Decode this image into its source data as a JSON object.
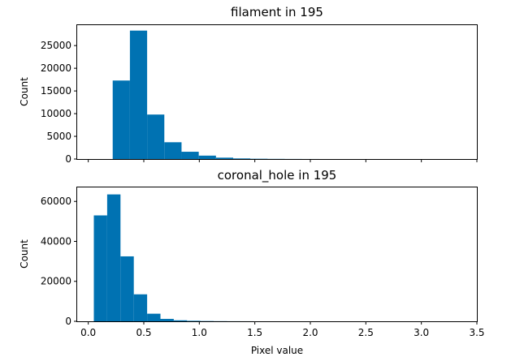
{
  "chart_data": [
    {
      "type": "bar",
      "title": "filament in 195",
      "xlabel": "",
      "ylabel": "Count",
      "bar_color": "#0072b2",
      "xlim": [
        -0.1,
        3.5
      ],
      "ylim": [
        0,
        29500
      ],
      "xticks": [
        0.0,
        0.5,
        1.0,
        1.5,
        2.0,
        2.5,
        3.0,
        3.5
      ],
      "xtick_labels_visible": false,
      "yticks": [
        0,
        5000,
        10000,
        15000,
        20000,
        25000
      ],
      "ytick_labels": [
        "0",
        "5000",
        "10000",
        "15000",
        "20000",
        "25000"
      ],
      "bins": [
        {
          "x0": 0.22,
          "x1": 0.375,
          "count": 17300
        },
        {
          "x0": 0.375,
          "x1": 0.53,
          "count": 28300
        },
        {
          "x0": 0.53,
          "x1": 0.685,
          "count": 9800
        },
        {
          "x0": 0.685,
          "x1": 0.84,
          "count": 3700
        },
        {
          "x0": 0.84,
          "x1": 0.995,
          "count": 1600
        },
        {
          "x0": 0.995,
          "x1": 1.15,
          "count": 750
        },
        {
          "x0": 1.15,
          "x1": 1.305,
          "count": 300
        },
        {
          "x0": 1.305,
          "x1": 1.46,
          "count": 130
        },
        {
          "x0": 1.46,
          "x1": 1.615,
          "count": 60
        },
        {
          "x0": 1.615,
          "x1": 1.77,
          "count": 30
        },
        {
          "x0": 1.77,
          "x1": 1.925,
          "count": 15
        },
        {
          "x0": 1.925,
          "x1": 2.08,
          "count": 8
        }
      ]
    },
    {
      "type": "bar",
      "title": "coronal_hole in 195",
      "xlabel": "Pixel value",
      "ylabel": "Count",
      "bar_color": "#0072b2",
      "xlim": [
        -0.1,
        3.5
      ],
      "ylim": [
        0,
        67000
      ],
      "xticks": [
        0.0,
        0.5,
        1.0,
        1.5,
        2.0,
        2.5,
        3.0,
        3.5
      ],
      "xtick_labels": [
        "0.0",
        "0.5",
        "1.0",
        "1.5",
        "2.0",
        "2.5",
        "3.0",
        "3.5"
      ],
      "yticks": [
        0,
        20000,
        40000,
        60000
      ],
      "ytick_labels": [
        "0",
        "20000",
        "40000",
        "60000"
      ],
      "bins": [
        {
          "x0": 0.05,
          "x1": 0.17,
          "count": 53000
        },
        {
          "x0": 0.17,
          "x1": 0.29,
          "count": 63500
        },
        {
          "x0": 0.29,
          "x1": 0.41,
          "count": 32500
        },
        {
          "x0": 0.41,
          "x1": 0.53,
          "count": 13500
        },
        {
          "x0": 0.53,
          "x1": 0.65,
          "count": 3800
        },
        {
          "x0": 0.65,
          "x1": 0.77,
          "count": 1200
        },
        {
          "x0": 0.77,
          "x1": 0.89,
          "count": 500
        },
        {
          "x0": 0.89,
          "x1": 1.01,
          "count": 250
        },
        {
          "x0": 1.01,
          "x1": 1.13,
          "count": 120
        },
        {
          "x0": 1.13,
          "x1": 1.25,
          "count": 60
        },
        {
          "x0": 1.25,
          "x1": 1.37,
          "count": 30
        },
        {
          "x0": 1.37,
          "x1": 1.49,
          "count": 15
        }
      ]
    }
  ]
}
